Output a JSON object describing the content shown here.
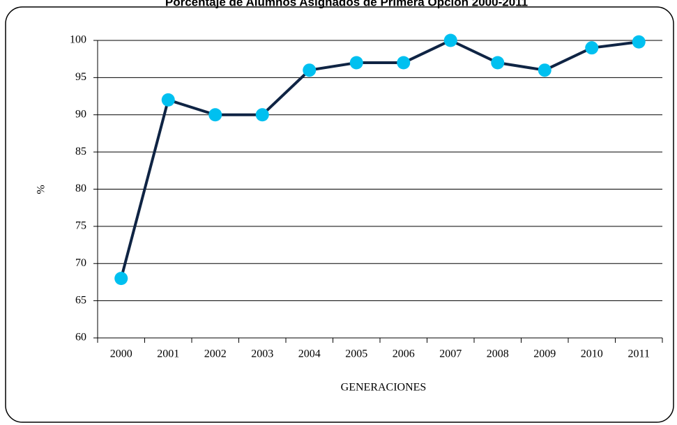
{
  "chart_data": {
    "type": "line",
    "title": "Porcentaje de Alumnos Asignados de Primera Opción 2000-2011",
    "x_label": "GENERACIONES",
    "y_label": "%",
    "categories": [
      "2000",
      "2001",
      "2002",
      "2003",
      "2004",
      "2005",
      "2006",
      "2007",
      "2008",
      "2009",
      "2010",
      "2011"
    ],
    "series": [
      {
        "name": "%",
        "color": "#0f2444",
        "marker_color": "#00c0f0",
        "values": [
          68,
          92,
          90,
          90,
          96,
          97,
          97,
          100,
          97,
          96,
          99,
          99.8
        ]
      }
    ],
    "ylim": [
      60,
      100
    ],
    "yticks": [
      60,
      65,
      70,
      75,
      80,
      85,
      90,
      95,
      100
    ],
    "grid": true
  }
}
